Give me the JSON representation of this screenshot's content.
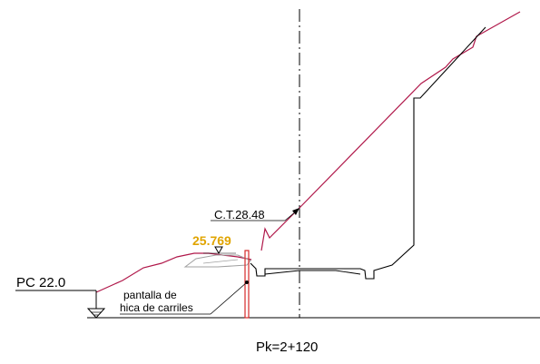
{
  "labels": {
    "ct_level": "C.T.28.48",
    "measured_level": "25.769",
    "pc_level": "PC 22.0",
    "screen_line1": "pantalla de",
    "screen_line2": "hica de carriles",
    "station": "Pk=2+120"
  },
  "colors": {
    "terrain": "#b0184a",
    "section": "#000000",
    "level_highlight": "#e0a400",
    "screen": "#d42a2a",
    "fill_outline": "#a0a0a0"
  }
}
